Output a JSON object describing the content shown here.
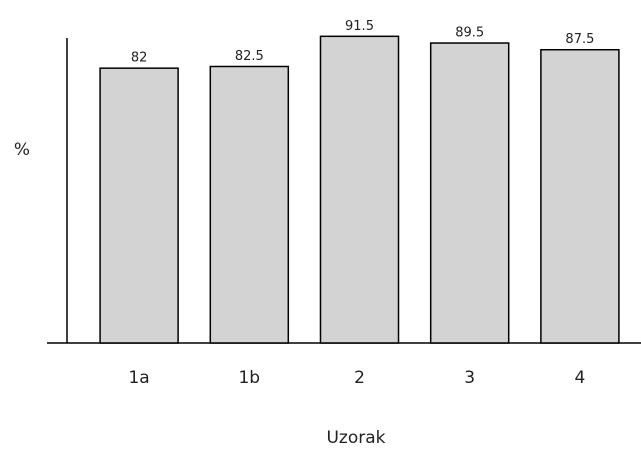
{
  "chart_data": {
    "type": "bar",
    "ylabel": "%",
    "xlabel": "Uzorak",
    "categories": [
      "1a",
      "1b",
      "2",
      "3",
      "4"
    ],
    "values": [
      82,
      82.5,
      91.5,
      89.5,
      87.5
    ],
    "color": "#d3d3d3",
    "ylim": [
      0,
      91
    ],
    "grid": false
  }
}
